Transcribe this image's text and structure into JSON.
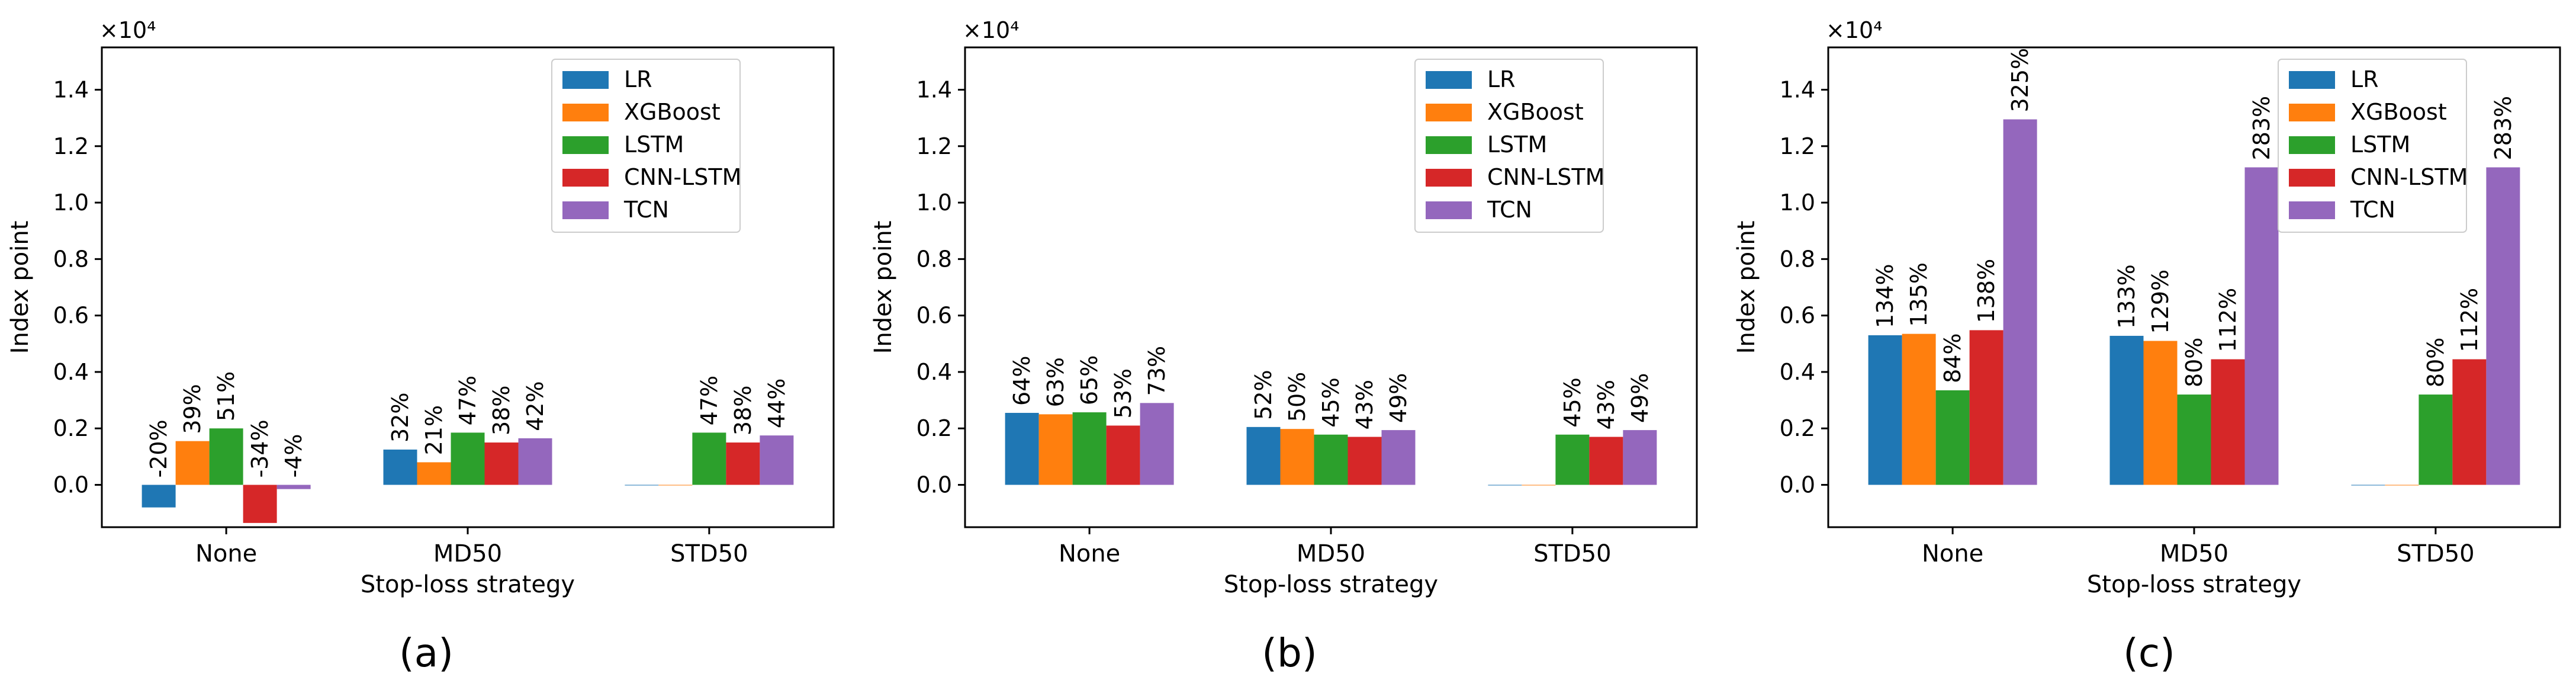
{
  "figure": {
    "series_colors": {
      "LR": "#1f77b4",
      "XGBoost": "#ff7f0e",
      "LSTM": "#2ca02c",
      "CNN-LSTM": "#d62728",
      "TCN": "#9467bd"
    },
    "panel_captions": [
      "(a)",
      "(b)",
      "(c)"
    ]
  },
  "chart_data": [
    {
      "type": "bar",
      "panel": "(a)",
      "categories": [
        "None",
        "MD50",
        "STD50"
      ],
      "series": [
        {
          "name": "LR",
          "values": [
            -800,
            1250,
            0
          ],
          "labels": [
            "-20%",
            "32%",
            ""
          ]
        },
        {
          "name": "XGBoost",
          "values": [
            1550,
            800,
            0
          ],
          "labels": [
            "39%",
            "21%",
            ""
          ]
        },
        {
          "name": "LSTM",
          "values": [
            2000,
            1850,
            1850
          ],
          "labels": [
            "51%",
            "47%",
            "47%"
          ]
        },
        {
          "name": "CNN-LSTM",
          "values": [
            -1350,
            1500,
            1500
          ],
          "labels": [
            "-34%",
            "38%",
            "38%"
          ]
        },
        {
          "name": "TCN",
          "values": [
            -150,
            1650,
            1750
          ],
          "labels": [
            "-4%",
            "42%",
            "44%"
          ]
        }
      ],
      "xlabel": "Stop-loss strategy",
      "ylabel": "Index point",
      "yscale_label": "×10⁴",
      "ylim": [
        -1500,
        15500
      ],
      "yticks": [
        0,
        2000,
        4000,
        6000,
        8000,
        10000,
        12000,
        14000
      ],
      "ytick_labels": [
        "0.0",
        "0.2",
        "0.4",
        "0.6",
        "0.8",
        "1.0",
        "1.2",
        "1.4"
      ],
      "legend": "top-right",
      "grid": false
    },
    {
      "type": "bar",
      "panel": "(b)",
      "categories": [
        "None",
        "MD50",
        "STD50"
      ],
      "series": [
        {
          "name": "LR",
          "values": [
            2550,
            2050,
            0
          ],
          "labels": [
            "64%",
            "52%",
            ""
          ]
        },
        {
          "name": "XGBoost",
          "values": [
            2500,
            1980,
            0
          ],
          "labels": [
            "63%",
            "50%",
            ""
          ]
        },
        {
          "name": "LSTM",
          "values": [
            2570,
            1780,
            1780
          ],
          "labels": [
            "65%",
            "45%",
            "45%"
          ]
        },
        {
          "name": "CNN-LSTM",
          "values": [
            2100,
            1700,
            1700
          ],
          "labels": [
            "53%",
            "43%",
            "43%"
          ]
        },
        {
          "name": "TCN",
          "values": [
            2900,
            1940,
            1940
          ],
          "labels": [
            "73%",
            "49%",
            "49%"
          ]
        }
      ],
      "xlabel": "Stop-loss strategy",
      "ylabel": "Index point",
      "yscale_label": "×10⁴",
      "ylim": [
        -1500,
        15500
      ],
      "yticks": [
        0,
        2000,
        4000,
        6000,
        8000,
        10000,
        12000,
        14000
      ],
      "ytick_labels": [
        "0.0",
        "0.2",
        "0.4",
        "0.6",
        "0.8",
        "1.0",
        "1.2",
        "1.4"
      ],
      "legend": "top-right",
      "grid": false
    },
    {
      "type": "bar",
      "panel": "(c)",
      "categories": [
        "None",
        "MD50",
        "STD50"
      ],
      "series": [
        {
          "name": "LR",
          "values": [
            5300,
            5280,
            0
          ],
          "labels": [
            "134%",
            "133%",
            ""
          ]
        },
        {
          "name": "XGBoost",
          "values": [
            5350,
            5100,
            0
          ],
          "labels": [
            "135%",
            "129%",
            ""
          ]
        },
        {
          "name": "LSTM",
          "values": [
            3350,
            3200,
            3200
          ],
          "labels": [
            "84%",
            "80%",
            "80%"
          ]
        },
        {
          "name": "CNN-LSTM",
          "values": [
            5480,
            4450,
            4450
          ],
          "labels": [
            "138%",
            "112%",
            "112%"
          ]
        },
        {
          "name": "TCN",
          "values": [
            12950,
            11250,
            11250
          ],
          "labels": [
            "325%",
            "283%",
            "283%"
          ]
        }
      ],
      "xlabel": "Stop-loss strategy",
      "ylabel": "Index point",
      "yscale_label": "×10⁴",
      "ylim": [
        -1500,
        15500
      ],
      "yticks": [
        0,
        2000,
        4000,
        6000,
        8000,
        10000,
        12000,
        14000
      ],
      "ytick_labels": [
        "0.0",
        "0.2",
        "0.4",
        "0.6",
        "0.8",
        "1.0",
        "1.2",
        "1.4"
      ],
      "legend": "top-right",
      "grid": false
    }
  ]
}
